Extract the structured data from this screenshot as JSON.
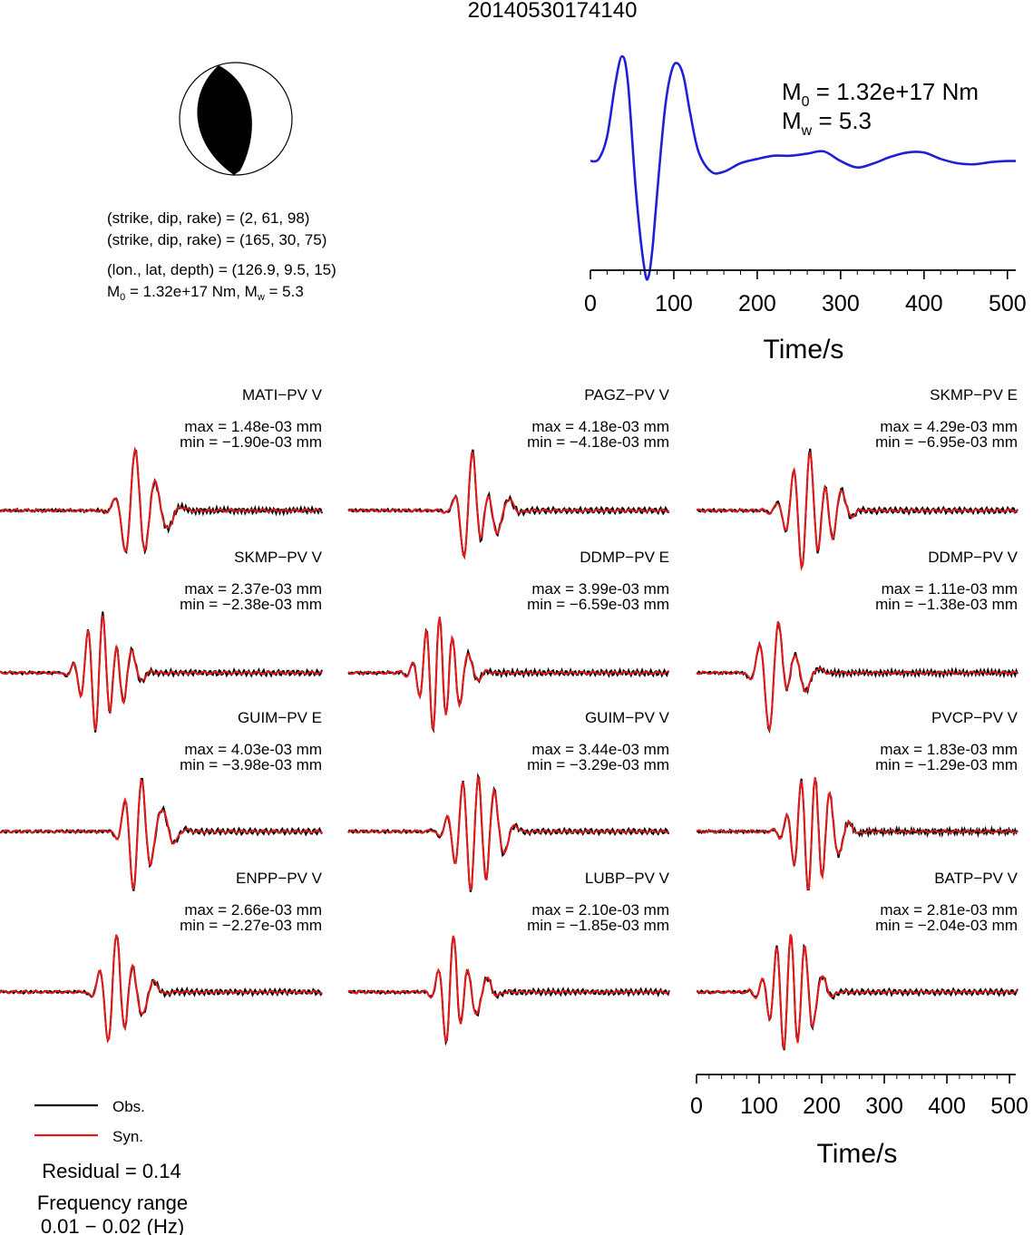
{
  "title": "20140530174140",
  "beachball": {
    "planes": [
      "(strike, dip, rake) = (2, 61, 98)",
      "(strike, dip, rake) = (165, 30, 75)"
    ],
    "location": "(lon., lat, depth) = (126.9, 9.5, 15)",
    "m0_label": "M",
    "m0_sub": "0",
    "m0_value": " = 1.32e+17 Nm, M",
    "mw_sub": "w",
    "mw_value": " = 5.3"
  },
  "stf": {
    "m0_main": "M",
    "m0_sub": "0",
    "m0_rest": " = 1.32e+17 Nm",
    "mw_main": "M",
    "mw_sub": "w",
    "mw_rest": " = 5.3"
  },
  "legend": {
    "obs": "Obs.",
    "syn": "Syn.",
    "residual": "Residual = 0.14",
    "freq_label": "Frequency range",
    "freq_value": "0.01 − 0.02 (Hz)"
  },
  "colors": {
    "obs": "#000000",
    "syn": "#e41a1c",
    "stf": "#1f1fd6"
  },
  "chart_data": [
    {
      "type": "line",
      "id": "source-time-function",
      "xlabel": "Time/s",
      "xlim": [
        0,
        510
      ],
      "xticks": [
        0,
        100,
        200,
        300,
        400,
        500
      ],
      "series": [
        {
          "x": [
            0,
            10,
            20,
            30,
            38,
            45,
            55,
            65,
            70,
            75,
            82,
            90,
            98,
            105,
            112,
            120,
            130,
            145,
            160,
            180,
            200,
            220,
            240,
            260,
            280,
            300,
            320,
            340,
            360,
            380,
            400,
            420,
            440,
            460,
            480,
            500,
            510
          ],
          "y": [
            0.02,
            0.04,
            0.25,
            0.75,
            1.0,
            0.75,
            -0.3,
            -1.0,
            -1.05,
            -0.75,
            -0.1,
            0.55,
            0.88,
            0.93,
            0.8,
            0.45,
            0.1,
            -0.08,
            -0.08,
            0.0,
            0.04,
            0.07,
            0.07,
            0.09,
            0.11,
            0.02,
            -0.04,
            0.0,
            0.06,
            0.1,
            0.1,
            0.04,
            0.0,
            -0.01,
            0.01,
            0.02,
            0.02
          ]
        }
      ]
    },
    {
      "type": "line",
      "id": "waveforms",
      "xlabel": "Time/s",
      "xlim": [
        0,
        510
      ],
      "xticks": [
        0,
        100,
        200,
        300,
        400,
        500
      ],
      "stations": [
        {
          "name": "MATI−PV V",
          "max": "max = 1.48e-03 mm",
          "min": "min = −1.90e-03 mm",
          "obs_seed": 11,
          "syn_seed": 21,
          "sharp": 1.4
        },
        {
          "name": "PAGZ−PV V",
          "max": "max = 4.18e-03 mm",
          "min": "min = −4.18e-03 mm",
          "obs_seed": 12,
          "syn_seed": 22,
          "sharp": 1.0
        },
        {
          "name": "SKMP−PV E",
          "max": "max = 4.29e-03 mm",
          "min": "min = −6.95e-03 mm",
          "obs_seed": 13,
          "syn_seed": 23,
          "sharp": 1.0
        },
        {
          "name": "SKMP−PV V",
          "max": "max = 2.37e-03 mm",
          "min": "min = −2.38e-03 mm",
          "obs_seed": 14,
          "syn_seed": 24,
          "sharp": 1.1
        },
        {
          "name": "DDMP−PV E",
          "max": "max = 3.99e-03 mm",
          "min": "min = −6.59e-03 mm",
          "obs_seed": 15,
          "syn_seed": 25,
          "sharp": 1.2
        },
        {
          "name": "DDMP−PV V",
          "max": "max = 1.11e-03 mm",
          "min": "min = −1.38e-03 mm",
          "obs_seed": 16,
          "syn_seed": 26,
          "sharp": 1.5
        },
        {
          "name": "GUIM−PV E",
          "max": "max = 4.03e-03 mm",
          "min": "min = −3.98e-03 mm",
          "obs_seed": 17,
          "syn_seed": 27,
          "sharp": 1.0
        },
        {
          "name": "GUIM−PV V",
          "max": "max = 3.44e-03 mm",
          "min": "min = −3.29e-03 mm",
          "obs_seed": 18,
          "syn_seed": 28,
          "sharp": 1.0
        },
        {
          "name": "PVCP−PV V",
          "max": "max = 1.83e-03 mm",
          "min": "min = −1.29e-03 mm",
          "obs_seed": 19,
          "syn_seed": 29,
          "sharp": 1.8
        },
        {
          "name": "ENPP−PV V",
          "max": "max = 2.66e-03 mm",
          "min": "min = −2.27e-03 mm",
          "obs_seed": 31,
          "syn_seed": 41,
          "sharp": 1.1
        },
        {
          "name": "LUBP−PV V",
          "max": "max = 2.10e-03 mm",
          "min": "min = −1.85e-03 mm",
          "obs_seed": 32,
          "syn_seed": 42,
          "sharp": 1.1
        },
        {
          "name": "BATP−PV V",
          "max": "max = 2.81e-03 mm",
          "min": "min = −2.04e-03 mm",
          "obs_seed": 33,
          "syn_seed": 43,
          "sharp": 1.0
        }
      ]
    }
  ]
}
